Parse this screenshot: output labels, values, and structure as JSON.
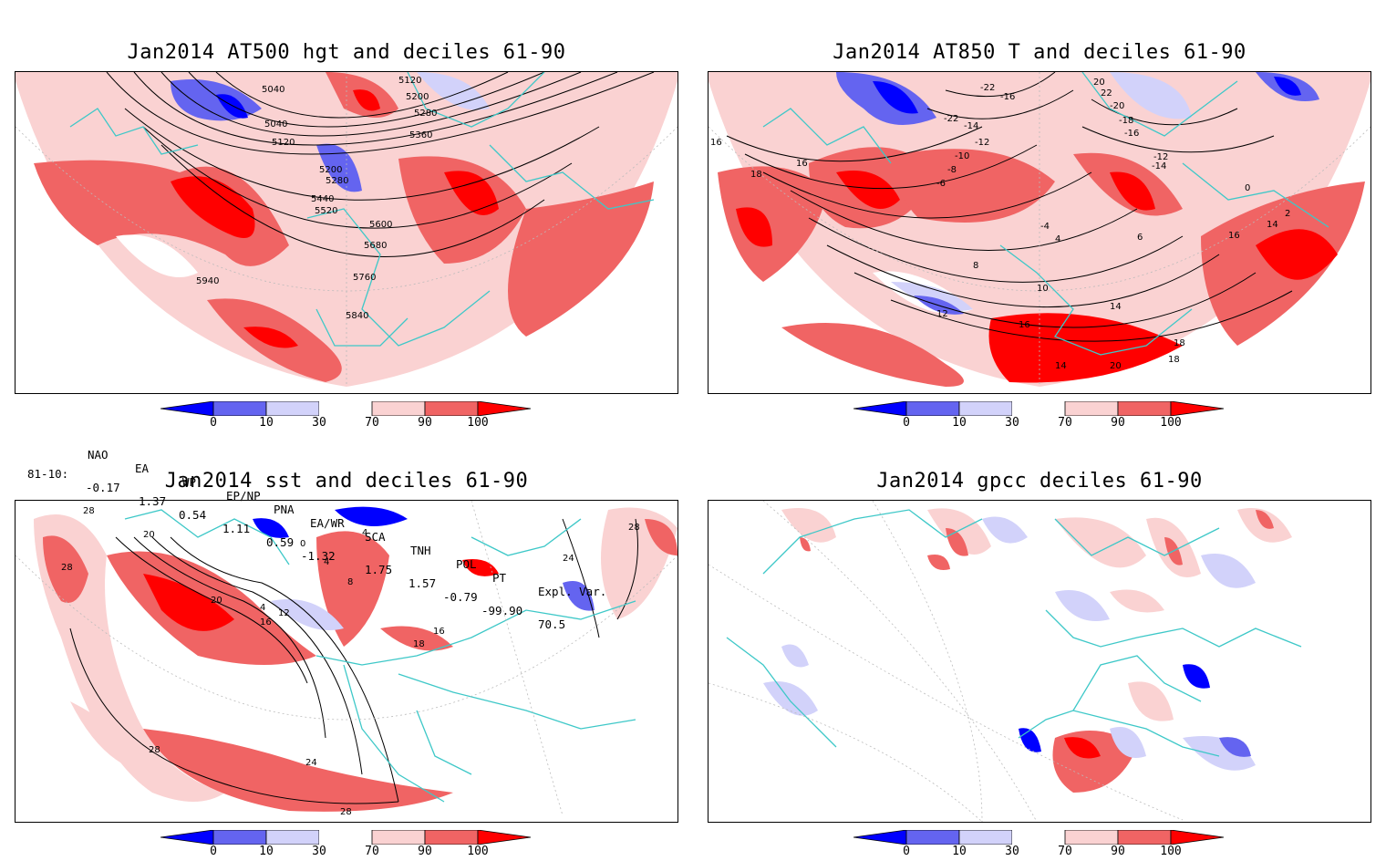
{
  "panels": [
    {
      "title": "Jan2014 AT500 hgt and deciles 61-90",
      "contour_labels": [
        "5040",
        "5120",
        "5200",
        "5280",
        "5360",
        "5040",
        "5120",
        "5200",
        "5280",
        "5440",
        "5520",
        "5600",
        "5680",
        "5760",
        "5840",
        "5940"
      ]
    },
    {
      "title": "Jan2014 AT850 T and deciles 61-90",
      "contour_labels": [
        "16",
        "18",
        "16",
        "-22",
        "-16",
        "-22",
        "-14",
        "-12",
        "-10",
        "-8",
        "-6",
        "-4",
        "4",
        "6",
        "8",
        "10",
        "12",
        "14",
        "16",
        "18",
        "20",
        "22",
        "-20",
        "-18",
        "-16",
        "-14",
        "-12",
        "0",
        "2",
        "14",
        "16",
        "18",
        "20",
        "14"
      ]
    },
    {
      "title": "Jan2014 sst and deciles 61-90",
      "contour_labels": [
        "28",
        "28",
        "20",
        "20",
        "4",
        "12",
        "16",
        "0",
        "4",
        "8",
        "4",
        "18",
        "16",
        "24",
        "28",
        "28",
        "24",
        "28"
      ]
    },
    {
      "title": "Jan2014 gpcc deciles 61-90",
      "contour_labels": []
    }
  ],
  "colorbar": {
    "labels": [
      "0",
      "10",
      "30",
      "70",
      "90",
      "100"
    ],
    "colors": {
      "dark_blue": "#0000ff",
      "mid_blue": "#6464f0",
      "light_blue": "#d2d2fa",
      "white": "#ffffff",
      "light_red": "#fad2d2",
      "mid_red": "#f06464",
      "dark_red": "#ff0000"
    }
  },
  "teleconnection": {
    "headers": [
      "NAO",
      "EA",
      "WP",
      "EP/NP",
      "PNA",
      "EA/WR",
      "SCA",
      "TNH",
      "POL",
      "PT",
      "Expl. Var."
    ],
    "row_label": "81-10:",
    "values": [
      "-0.17",
      "1.37",
      "0.54",
      "1.11",
      "0.59",
      "-1.32",
      "1.75",
      "1.57",
      "-0.79",
      "-99.90",
      "70.5"
    ]
  },
  "map_colors": {
    "coast": "#3ec8c8",
    "contour": "#000000",
    "grid": "#bbbbbb"
  }
}
